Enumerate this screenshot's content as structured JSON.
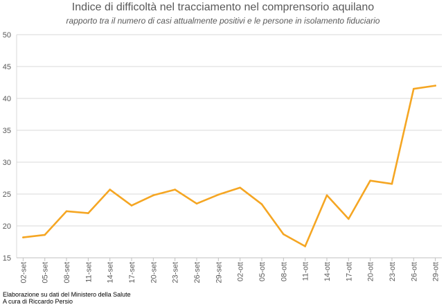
{
  "chart_data": {
    "type": "line",
    "title": "Indice di difficoltà nel tracciamento nel comprensorio aquilano",
    "subtitle": "rapporto tra il numero di casi attualmente positivi e le persone in isolamento fiduciario",
    "categories": [
      "02-set",
      "05-set",
      "08-set",
      "11-set",
      "14-set",
      "17-set",
      "20-set",
      "23-set",
      "26-set",
      "29-set",
      "02-ott",
      "05-ott",
      "08-ott",
      "11-ott",
      "14-ott",
      "17-ott",
      "20-ott",
      "23-ott",
      "26-ott",
      "29-ott"
    ],
    "series": [
      {
        "name": "Indice",
        "values": [
          18.2,
          18.6,
          22.3,
          22.0,
          25.7,
          23.2,
          24.8,
          25.7,
          23.5,
          24.9,
          26.0,
          23.4,
          18.7,
          16.8,
          24.8,
          21.1,
          27.1,
          26.6,
          41.5,
          42.0
        ]
      }
    ],
    "ylim": [
      15,
      50
    ],
    "yticks": [
      15,
      20,
      25,
      30,
      35,
      40,
      45,
      50
    ],
    "grid": true,
    "xlabel": "",
    "ylabel": ""
  },
  "colors": {
    "line": "#F5A623",
    "grid": "#D9D9D9",
    "text": "#595959"
  },
  "credits": {
    "line1": "Elaborazione su dati del Ministero della Salute",
    "line2": "A cura di Riccardo Persio"
  }
}
